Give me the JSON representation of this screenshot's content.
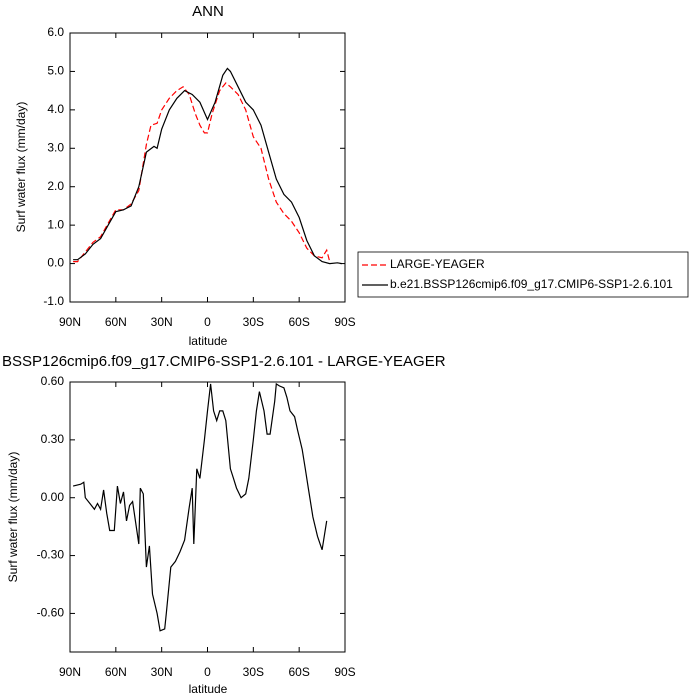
{
  "chart_data": [
    {
      "type": "line",
      "title": "ANN",
      "xlabel": "latitude",
      "ylabel": "Surf water flux (mm/day)",
      "xlim": [
        90,
        -90
      ],
      "xticks": [
        {
          "value": 90,
          "label": "90N"
        },
        {
          "value": 60,
          "label": "60N"
        },
        {
          "value": 30,
          "label": "30N"
        },
        0,
        {
          "value": -30,
          "label": "30S"
        },
        {
          "value": -60,
          "label": "60S"
        },
        {
          "value": -90,
          "label": "90S"
        }
      ],
      "ylim": [
        -1,
        6
      ],
      "yticks": [
        {
          "value": -1,
          "label": "-1.0"
        },
        {
          "value": 0,
          "label": "0.0"
        },
        {
          "value": 1,
          "label": "1.0"
        },
        {
          "value": 2,
          "label": "2.0"
        },
        {
          "value": 3,
          "label": "3.0"
        },
        {
          "value": 4,
          "label": "4.0"
        },
        {
          "value": 5,
          "label": "5.0"
        },
        {
          "value": 6,
          "label": "6.0"
        }
      ],
      "series": [
        {
          "name": "LARGE-YEAGER",
          "color": "#ff0000",
          "dashed": true,
          "x": [
            88,
            85,
            80,
            75,
            70,
            65,
            60,
            55,
            50,
            45,
            40,
            37,
            33,
            30,
            25,
            20,
            16,
            12,
            8,
            5,
            2,
            0,
            -3,
            -8,
            -12,
            -15,
            -20,
            -25,
            -30,
            -35,
            -40,
            -45,
            -50,
            -55,
            -60,
            -65,
            -70,
            -75,
            -78,
            -80
          ],
          "values": [
            0.05,
            0.05,
            0.3,
            0.55,
            0.7,
            1.05,
            1.4,
            1.4,
            1.55,
            1.9,
            3.1,
            3.6,
            3.65,
            4.0,
            4.3,
            4.5,
            4.6,
            4.4,
            3.9,
            3.6,
            3.4,
            3.4,
            3.9,
            4.5,
            4.7,
            4.6,
            4.4,
            4.0,
            3.3,
            3.0,
            2.2,
            1.6,
            1.3,
            1.1,
            0.8,
            0.4,
            0.2,
            0.15,
            0.35,
            0.05
          ]
        },
        {
          "name": "b.e21.BSSP126cmip6.f09_g17.CMIP6-SSP1-2.6.101",
          "color": "#000000",
          "dashed": false,
          "x": [
            88,
            85,
            80,
            75,
            70,
            65,
            60,
            55,
            50,
            45,
            40,
            35,
            33,
            30,
            25,
            20,
            15,
            10,
            5,
            0,
            -5,
            -10,
            -13,
            -15,
            -20,
            -25,
            -30,
            -35,
            -40,
            -45,
            -50,
            -55,
            -60,
            -65,
            -70,
            -75,
            -80,
            -85,
            -88
          ],
          "values": [
            0.1,
            0.1,
            0.25,
            0.5,
            0.65,
            1.0,
            1.35,
            1.4,
            1.5,
            2.0,
            2.9,
            3.05,
            3.0,
            3.5,
            4.0,
            4.3,
            4.5,
            4.4,
            4.2,
            3.75,
            4.2,
            4.9,
            5.08,
            5.0,
            4.6,
            4.2,
            4.0,
            3.6,
            2.9,
            2.2,
            1.8,
            1.6,
            1.2,
            0.6,
            0.2,
            0.05,
            0.0,
            0.02,
            0.0
          ]
        }
      ]
    },
    {
      "type": "line",
      "title": "BSSP126cmip6.f09_g17.CMIP6-SSP1-2.6.101 - LARGE-YEAGER",
      "xlabel": "latitude",
      "ylabel": "Surf water flux (mm/day)",
      "xlim": [
        90,
        -90
      ],
      "xticks": [
        {
          "value": 90,
          "label": "90N"
        },
        {
          "value": 60,
          "label": "60N"
        },
        {
          "value": 30,
          "label": "30N"
        },
        0,
        {
          "value": -30,
          "label": "30S"
        },
        {
          "value": -60,
          "label": "60S"
        },
        {
          "value": -90,
          "label": "90S"
        }
      ],
      "ylim": [
        -0.8,
        0.6
      ],
      "yticks": [
        {
          "value": -0.6,
          "label": "-0.60"
        },
        {
          "value": -0.3,
          "label": "-0.30"
        },
        {
          "value": 0,
          "label": "0.00"
        },
        {
          "value": 0.3,
          "label": "0.30"
        },
        {
          "value": 0.6,
          "label": "0.60"
        }
      ],
      "series": [
        {
          "color": "#000000",
          "dashed": false,
          "x": [
            88,
            83,
            81,
            80,
            77,
            74,
            72,
            70,
            68,
            66,
            64,
            61,
            59,
            57,
            55,
            53,
            51,
            49,
            47,
            45,
            44,
            42,
            40,
            38,
            36,
            33,
            31,
            28,
            27,
            24,
            21,
            18,
            15,
            12,
            10,
            9,
            7,
            5,
            2,
            0,
            -2,
            -4,
            -6,
            -8,
            -10,
            -12,
            -15,
            -17,
            -19,
            -22,
            -25,
            -27,
            -30,
            -32,
            -34,
            -37,
            -39,
            -41,
            -44,
            -45,
            -47,
            -50,
            -52,
            -54,
            -57,
            -59,
            -62,
            -64,
            -66,
            -69,
            -72,
            -75,
            -78
          ],
          "values": [
            0.06,
            0.07,
            0.08,
            0.0,
            -0.03,
            -0.06,
            -0.03,
            -0.06,
            0.04,
            -0.08,
            -0.17,
            -0.17,
            0.06,
            -0.03,
            0.03,
            -0.12,
            -0.04,
            -0.02,
            -0.13,
            -0.24,
            0.05,
            0.02,
            -0.36,
            -0.25,
            -0.5,
            -0.6,
            -0.69,
            -0.68,
            -0.6,
            -0.36,
            -0.33,
            -0.28,
            -0.22,
            -0.05,
            0.05,
            -0.24,
            0.15,
            0.1,
            0.3,
            0.45,
            0.59,
            0.45,
            0.4,
            0.45,
            0.45,
            0.4,
            0.15,
            0.1,
            0.05,
            0.0,
            0.02,
            0.1,
            0.3,
            0.45,
            0.55,
            0.45,
            0.33,
            0.33,
            0.5,
            0.59,
            0.58,
            0.57,
            0.52,
            0.45,
            0.42,
            0.35,
            0.25,
            0.15,
            0.05,
            -0.1,
            -0.2,
            -0.27,
            -0.12
          ]
        }
      ]
    }
  ]
}
